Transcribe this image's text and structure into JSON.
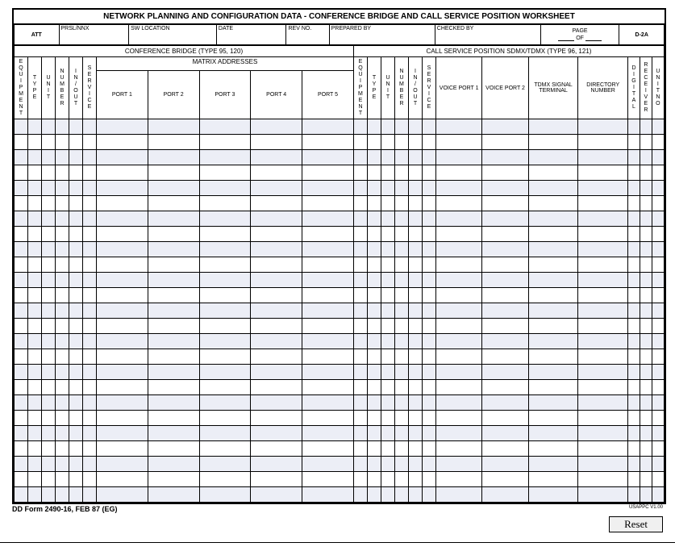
{
  "title": "NETWORK PLANNING AND CONFIGURATION DATA - CONFERENCE BRIDGE AND CALL SERVICE POSITION WORKSHEET",
  "meta": {
    "att": "ATT",
    "prsl_nnx": "PRSL/NNX",
    "sw_location": "SW LOCATION",
    "date": "DATE",
    "rev_no": "REV NO.",
    "prepared_by": "PREPARED BY",
    "checked_by": "CHECKED BY",
    "page": "PAGE",
    "of": "OF",
    "form_code": "D-2A"
  },
  "section_left": "CONFERENCE BRIDGE (TYPE 95, 120)",
  "section_right": "CALL SERVICE POSITION SDMX/TDMX (TYPE 96, 121)",
  "matrix_hdr": "MATRIX ADDRESSES",
  "cols": {
    "equipment": "EQUIPMENT",
    "type": "TYPE",
    "unit": "UNIT",
    "number": "NUMBER",
    "in_out": "IN/OUT",
    "service": "SERVICE",
    "port1": "PORT 1",
    "port2": "PORT 2",
    "port3": "PORT 3",
    "port4": "PORT 4",
    "port5": "PORT 5",
    "voice_port1": "VOICE PORT 1",
    "voice_port2": "VOICE PORT 2",
    "tdmx_signal": "TDMX SIGNAL TERMINAL",
    "directory": "DIRECTORY NUMBER",
    "digital": "DIGITAL",
    "receiver": "RECEIVER",
    "unit_no": "UNIT NO"
  },
  "data_rows": 25,
  "row_even_color": "#eceef6",
  "row_odd_color": "#ffffff",
  "footer": {
    "form_id": "DD Form 2490-16, FEB 87 (EG)",
    "version": "USAPPC V1.00",
    "reset": "Reset"
  },
  "colors": {
    "border": "#000000",
    "background": "#ffffff",
    "text": "#000000"
  }
}
